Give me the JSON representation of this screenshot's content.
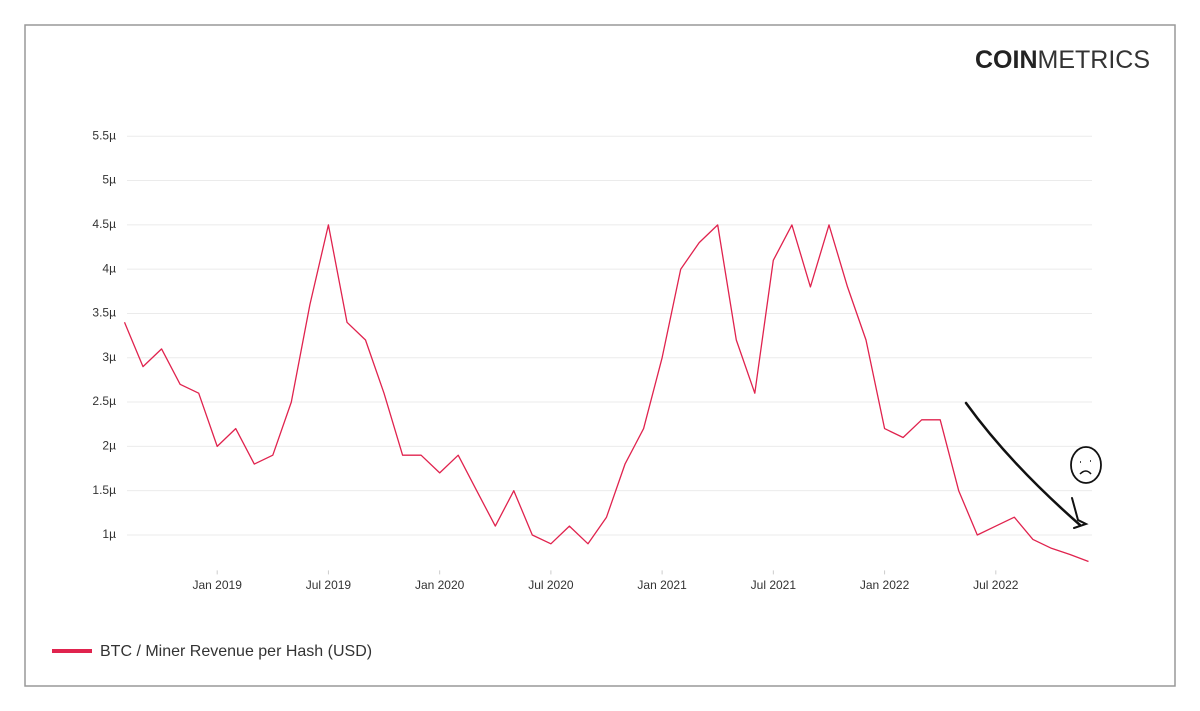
{
  "chart_data": {
    "type": "line",
    "logo": {
      "bold": "COIN",
      "light": "METRICS"
    },
    "x": [
      "2018-08",
      "2018-09",
      "2018-10",
      "2018-11",
      "2018-12",
      "2019-01",
      "2019-02",
      "2019-03",
      "2019-04",
      "2019-05",
      "2019-06",
      "2019-07",
      "2019-08",
      "2019-09",
      "2019-10",
      "2019-11",
      "2019-12",
      "2020-01",
      "2020-02",
      "2020-03",
      "2020-04",
      "2020-05",
      "2020-06",
      "2020-07",
      "2020-08",
      "2020-09",
      "2020-10",
      "2020-11",
      "2020-12",
      "2021-01",
      "2021-02",
      "2021-03",
      "2021-04",
      "2021-05",
      "2021-06",
      "2021-07",
      "2021-08",
      "2021-09",
      "2021-10",
      "2021-11",
      "2021-12",
      "2022-01",
      "2022-02",
      "2022-03",
      "2022-04",
      "2022-05",
      "2022-06",
      "2022-07",
      "2022-08",
      "2022-09",
      "2022-10",
      "2022-11",
      "2022-12"
    ],
    "series": [
      {
        "name": "BTC / Miner Revenue per Hash (USD)",
        "color": "#e0234e",
        "values": [
          3.4e-06,
          2.9e-06,
          3.1e-06,
          2.7e-06,
          2.6e-06,
          2e-06,
          2.2e-06,
          1.8e-06,
          1.9e-06,
          2.5e-06,
          3.6e-06,
          4.5e-06,
          3.4e-06,
          3.2e-06,
          2.6e-06,
          1.9e-06,
          1.9e-06,
          1.7e-06,
          1.9e-06,
          1.5e-06,
          1.1e-06,
          1.5e-06,
          1e-06,
          9e-07,
          1.1e-06,
          9e-07,
          1.2e-06,
          1.8e-06,
          2.2e-06,
          3e-06,
          4e-06,
          4.3e-06,
          4.5e-06,
          3.2e-06,
          2.6e-06,
          4.1e-06,
          4.5e-06,
          3.8e-06,
          4.5e-06,
          3.8e-06,
          3.2e-06,
          2.2e-06,
          2.1e-06,
          2.3e-06,
          2.3e-06,
          1.5e-06,
          1e-06,
          1.1e-06,
          1.2e-06,
          9.5e-07,
          8.5e-07,
          7.8e-07,
          7e-07
        ]
      }
    ],
    "xlim": [
      "2018-08",
      "2022-12"
    ],
    "xticks": [
      {
        "value": "2019-01",
        "label": "Jan 2019"
      },
      {
        "value": "2019-07",
        "label": "Jul 2019"
      },
      {
        "value": "2020-01",
        "label": "Jan 2020"
      },
      {
        "value": "2020-07",
        "label": "Jul 2020"
      },
      {
        "value": "2021-01",
        "label": "Jan 2021"
      },
      {
        "value": "2021-07",
        "label": "Jul 2021"
      },
      {
        "value": "2022-01",
        "label": "Jan 2022"
      },
      {
        "value": "2022-07",
        "label": "Jul 2022"
      }
    ],
    "ylim": [
      6e-07,
      5.6e-06
    ],
    "yticks": [
      {
        "value": 1e-06,
        "label": "1µ"
      },
      {
        "value": 1.5e-06,
        "label": "1.5µ"
      },
      {
        "value": 2e-06,
        "label": "2µ"
      },
      {
        "value": 2.5e-06,
        "label": "2.5µ"
      },
      {
        "value": 3e-06,
        "label": "3µ"
      },
      {
        "value": 3.5e-06,
        "label": "3.5µ"
      },
      {
        "value": 4e-06,
        "label": "4µ"
      },
      {
        "value": 4.5e-06,
        "label": "4.5µ"
      },
      {
        "value": 5e-06,
        "label": "5µ"
      },
      {
        "value": 5.5e-06,
        "label": "5.5µ"
      }
    ],
    "grid": true
  }
}
